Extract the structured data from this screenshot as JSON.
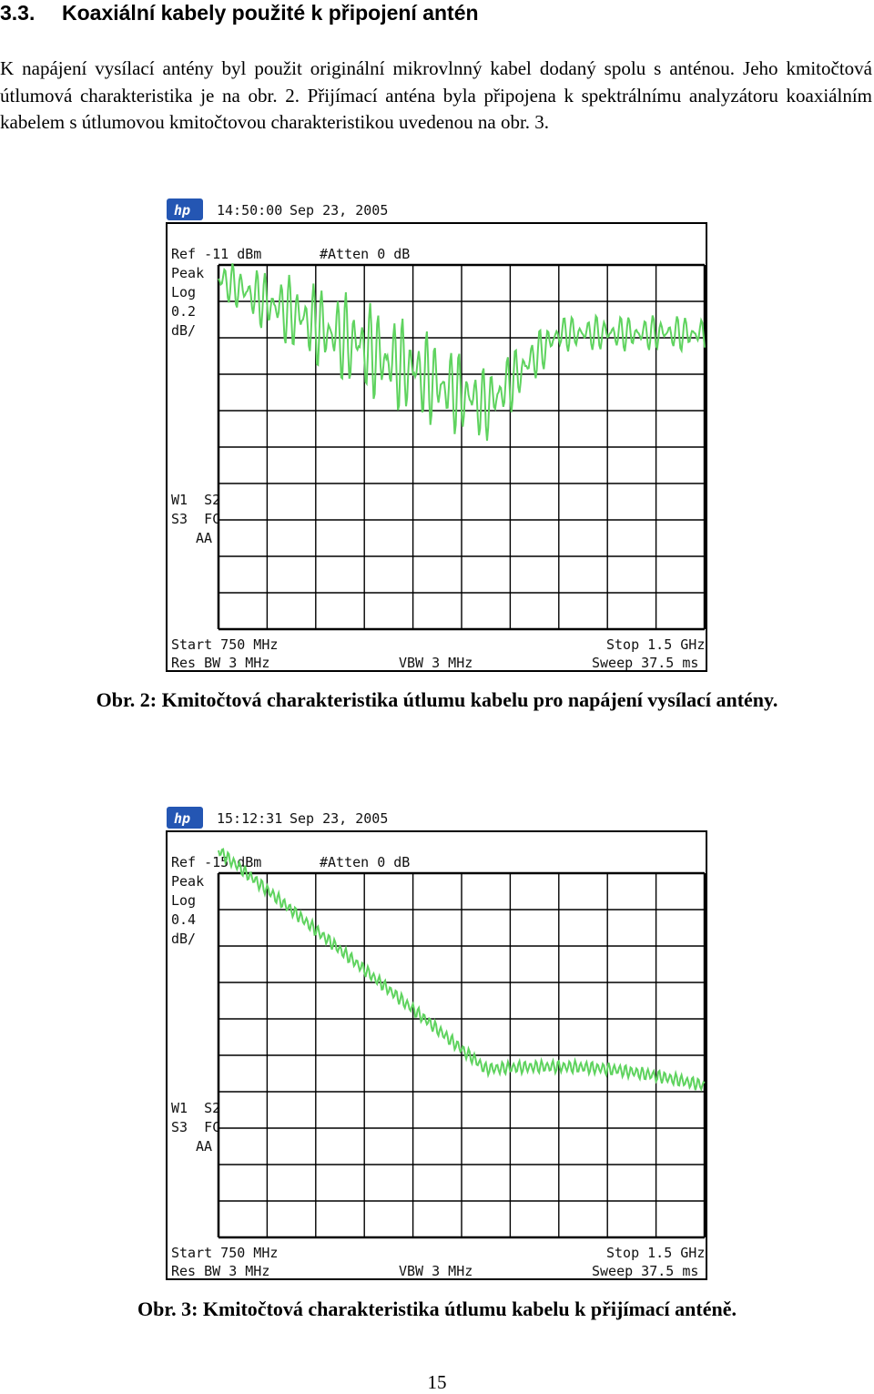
{
  "section": {
    "number": "3.3.",
    "title": "Koaxiální kabely použité k připojení antén"
  },
  "intro": "K napájení vysílací antény byl použit originální mikrovlnný kabel dodaný spolu s anténou. Jeho kmitočtová útlumová charakteristika je na obr. 2. Přijímací anténa byla připojena k spektrálnímu analyzátoru koaxiálním kabelem s útlumovou kmitočtovou charakteristikou uvedenou na obr. 3.",
  "figures": [
    {
      "caption": "Obr. 2: Kmitočtová charakteristika útlumu kabelu pro napájení vysílací antény.",
      "screen": {
        "logo": "hp",
        "time": "14:50:00",
        "date": "Sep 23, 2005",
        "ref": "Ref -11 dBm",
        "atten": "#Atten 0 dB",
        "mode": [
          "Peak",
          "Log",
          "0.2",
          "dB/"
        ],
        "flags": [
          "W1  S2",
          "S3  FC",
          "AA"
        ],
        "start": "Start 750 MHz",
        "stop": "Stop 1.5 GHz",
        "resbw": "Res BW 3 MHz",
        "vbw": "VBW 3 MHz",
        "sweep": "Sweep 37.5 ms"
      }
    },
    {
      "caption": "Obr. 3: Kmitočtová charakteristika útlumu kabelu k přijímací anténě.",
      "screen": {
        "logo": "hp",
        "time": "15:12:31",
        "date": "Sep 23, 2005",
        "ref": "Ref -15 dBm",
        "atten": "#Atten 0 dB",
        "mode": [
          "Peak",
          "Log",
          "0.4",
          "dB/"
        ],
        "flags": [
          "W1  S2",
          "S3  FC",
          "AA"
        ],
        "start": "Start 750 MHz",
        "stop": "Stop 1.5 GHz",
        "resbw": "Res BW 3 MHz",
        "vbw": "VBW 3 MHz",
        "sweep": "Sweep 37.5 ms"
      }
    }
  ],
  "page_number": "15",
  "colors": {
    "trace": "#5fd35f",
    "grid": "#000000",
    "logo": "#2456b3"
  }
}
